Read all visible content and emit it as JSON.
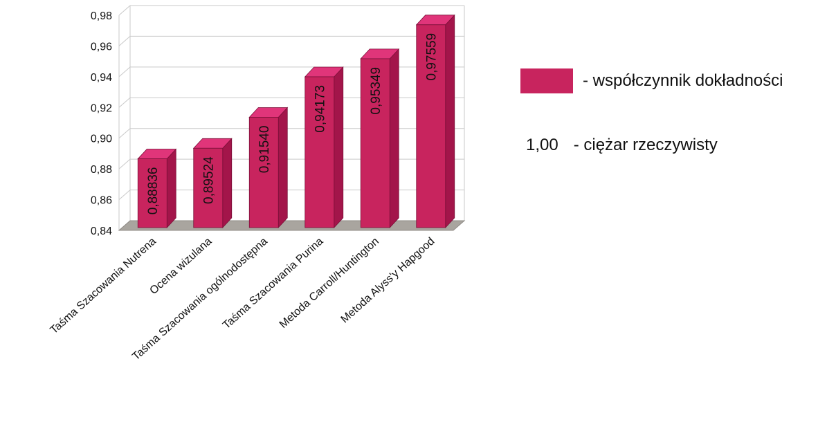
{
  "chart_data": {
    "type": "bar",
    "categories": [
      "Taśma Szacowania Nutrena",
      "Ocena wizulana",
      "Taśma Szacowania ogólnodostępna",
      "Taśma Szacowania Purina",
      "Metoda Carroll/Huntington",
      "Metoda Alyss'y Hapgood"
    ],
    "values": [
      0.88836,
      0.89524,
      0.9154,
      0.94173,
      0.95349,
      0.97559
    ],
    "value_labels": [
      "0,88836",
      "0,89524",
      "0,91540",
      "0,94173",
      "0,95349",
      "0,97559"
    ],
    "ylim": [
      0.84,
      0.98
    ],
    "yticks": [
      0.84,
      0.86,
      0.88,
      0.9,
      0.92,
      0.94,
      0.96,
      0.98
    ],
    "ytick_labels": [
      "0,84",
      "0,86",
      "0,88",
      "0,90",
      "0,92",
      "0,94",
      "0,96",
      "0,98"
    ],
    "grid": true,
    "style": "3d",
    "legend_placement": "right"
  },
  "colors": {
    "bar_front": "#c8245e",
    "bar_side": "#a3154a",
    "bar_top": "#e0357a",
    "floor": "#a9a59f",
    "grid": "#c9c9c9"
  },
  "legend": {
    "series_label": "- współczynnik dokładności",
    "weight_value": "1,00",
    "weight_label": "- ciężar rzeczywisty"
  }
}
